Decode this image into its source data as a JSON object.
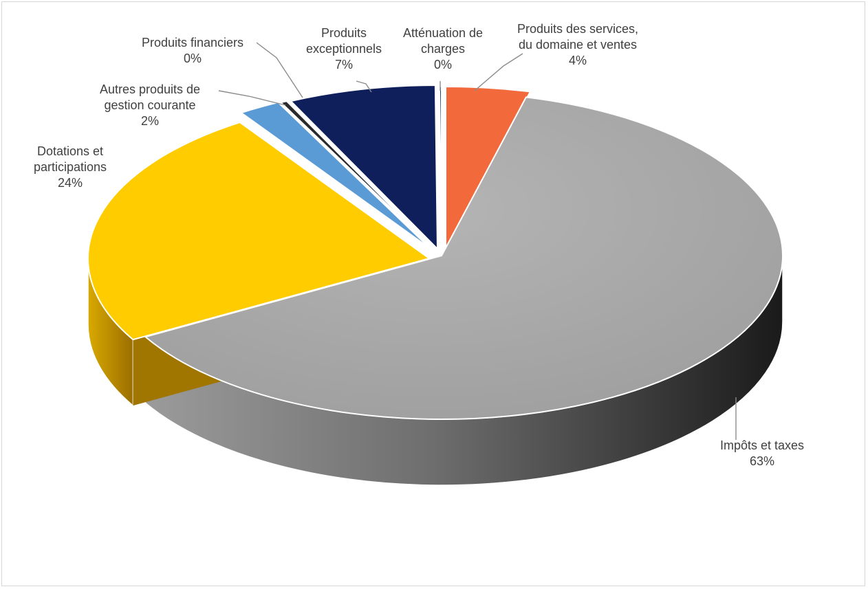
{
  "chart_data": {
    "type": "pie",
    "title": "",
    "style": "3d-exploded",
    "legend": "none",
    "slices": [
      {
        "label_lines": [
          "Produits des services,",
          "du domaine et ventes"
        ],
        "pct_label": "4%",
        "value": 4,
        "color": "#f26a3c"
      },
      {
        "label_lines": [
          "Impôts et taxes"
        ],
        "pct_label": "63%",
        "value": 63,
        "color": "#a6a6a6"
      },
      {
        "label_lines": [
          "Dotations et",
          "participations"
        ],
        "pct_label": "24%",
        "value": 24,
        "color": "#ffcc00"
      },
      {
        "label_lines": [
          "Autres produits de",
          "gestion courante"
        ],
        "pct_label": "2%",
        "value": 2,
        "color": "#5b9bd5"
      },
      {
        "label_lines": [
          "Produits financiers"
        ],
        "pct_label": "0%",
        "value": 0.3,
        "color": "#2a2a2a"
      },
      {
        "label_lines": [
          "Produits",
          "exceptionnels"
        ],
        "pct_label": "7%",
        "value": 7,
        "color": "#0f1f5c"
      },
      {
        "label_lines": [
          "Atténuation de",
          "charges"
        ],
        "pct_label": "0%",
        "value": 0.1,
        "color": "#1c3c78"
      }
    ]
  }
}
